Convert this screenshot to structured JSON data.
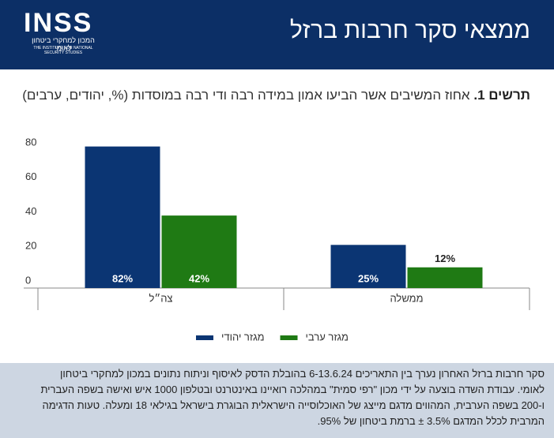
{
  "header": {
    "title": "ממצאי סקר חרבות ברזל",
    "logo": "INSS",
    "logo_he": "המכון למחקרי ביטחון לאומי",
    "logo_en": "THE INSTITUTE FOR NATIONAL SECURITY STUDIES"
  },
  "chart_data": {
    "type": "bar",
    "figure_label": "תרשים 1.",
    "title": "אחוז המשיבים אשר הביעו אמון במידה רבה ודי רבה במוסדות (%, יהודים, ערבים)",
    "categories": [
      "צה״ל",
      "ממשלה"
    ],
    "series": [
      {
        "name": "מגזר יהודי",
        "color": "#0b3573",
        "values": [
          82,
          25
        ],
        "value_labels": [
          "82%",
          "25%"
        ]
      },
      {
        "name": "מגזר ערבי",
        "color": "#1f7a14",
        "values": [
          42,
          12
        ],
        "value_labels": [
          "42%",
          "12%"
        ]
      }
    ],
    "ylim": [
      0,
      80
    ],
    "yticks": [
      0,
      20,
      40,
      60,
      80
    ],
    "grid": false,
    "legend": "bottom"
  },
  "footer": {
    "text": "סקר חרבות ברזל האחרון נערך בין התאריכים 6-13.6.24 בהובלת הדסק לאיסוף וניתוח נתונים במכון למחקרי ביטחון לאומי. עבודת השדה בוצעה על ידי מכון \"רפי סמית\" במהלכה רואיינו באינטרנט ובטלפון 1000 איש ואישה בשפה העברית ו-200 בשפה הערבית, המהווים מדגם מייצג של האוכלוסייה הישראלית הבוגרת בישראל בגילאי 18 ומעלה. טעות הדגימה המרבית לכלל המדגם 3.5% ± ברמת ביטחון של 95%."
  }
}
